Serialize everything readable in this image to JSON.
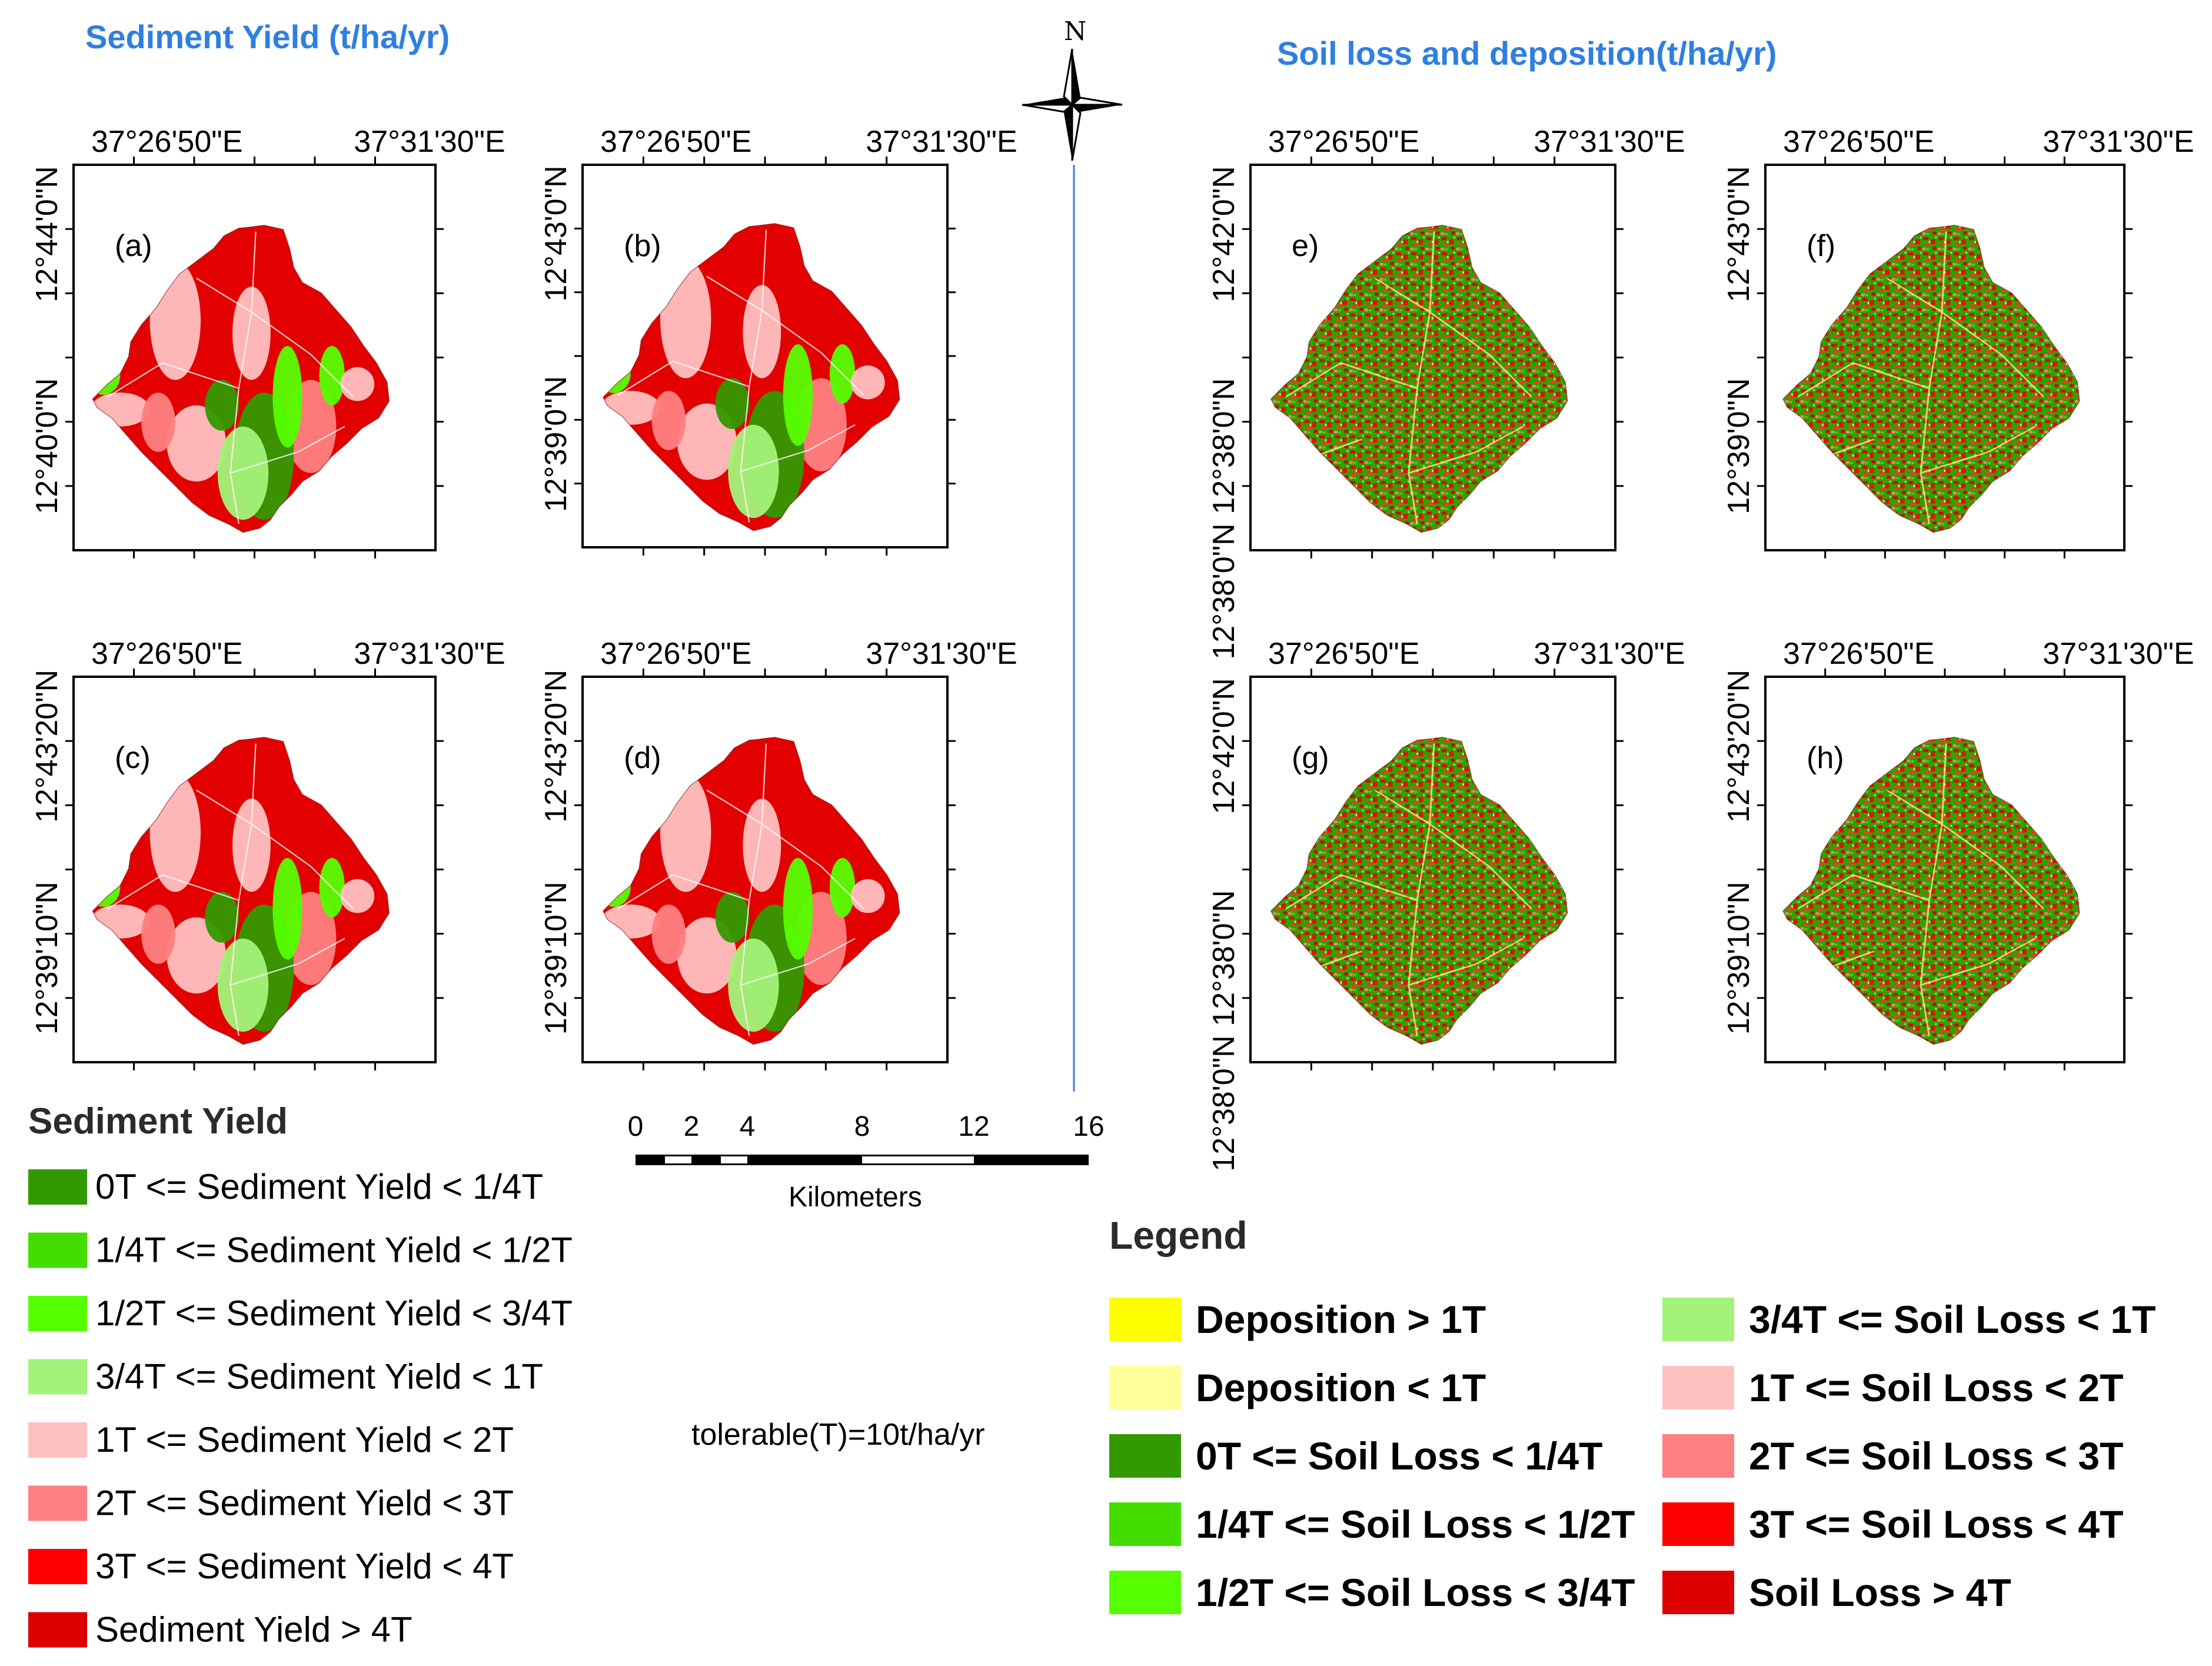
{
  "titles": {
    "sediment": "Sediment Yield (t/ha/yr)",
    "soil": "Soil loss and deposition(t/ha/yr)"
  },
  "north_label": "N",
  "colors": {
    "sy": [
      "#339900",
      "#44dd00",
      "#55ff00",
      "#a3f37a",
      "#ffc0c0",
      "#ff8080",
      "#ff0000",
      "#dd0000"
    ],
    "sl": [
      "#ffff00",
      "#ffff99",
      "#339900",
      "#44dd00",
      "#55ff00",
      "#a3f37a",
      "#ffc0c0",
      "#ff8080",
      "#ff0000",
      "#dd0000"
    ]
  },
  "panels": [
    {
      "id": "a",
      "label": "(a)",
      "lon": [
        "37°26'50\"E",
        "37°31'30\"E"
      ],
      "lat": [
        "12°44'0\"N",
        "12°40'0\"N"
      ],
      "style": "sy"
    },
    {
      "id": "b",
      "label": "(b)",
      "lon": [
        "37°26'50\"E",
        "37°31'30\"E"
      ],
      "lat": [
        "12°43'0\"N",
        "12°39'0\"N"
      ],
      "style": "sy"
    },
    {
      "id": "c",
      "label": "(c)",
      "lon": [
        "37°26'50\"E",
        "37°31'30\"E"
      ],
      "lat": [
        "12°43'20\"N",
        "12°39'10\"N"
      ],
      "style": "sy"
    },
    {
      "id": "d",
      "label": "(d)",
      "lon": [
        "37°26'50\"E",
        "37°31'30\"E"
      ],
      "lat": [
        "12°43'20\"N",
        "12°39'10\"N"
      ],
      "style": "sy"
    },
    {
      "id": "e",
      "label": "e)",
      "lon": [
        "37°26'50\"E",
        "37°31'30\"E"
      ],
      "lat": [
        "12°42'0\"N",
        "12°38'0\"N"
      ],
      "style": "sl"
    },
    {
      "id": "f",
      "label": "(f)",
      "lon": [
        "37°26'50\"E",
        "37°31'30\"E"
      ],
      "lat": [
        "12°43'0\"N",
        "12°39'0\"N"
      ],
      "style": "sl"
    },
    {
      "id": "g",
      "label": "(g)",
      "lon": [
        "37°26'50\"E",
        "37°31'30\"E"
      ],
      "lat": [
        "12°42'0\"N",
        "12°38'0\"N"
      ],
      "style": "sl"
    },
    {
      "id": "h",
      "label": "(h)",
      "lon": [
        "37°26'50\"E",
        "37°31'30\"E"
      ],
      "lat": [
        "12°43'20\"N",
        "12°39'10\"N"
      ],
      "style": "sl"
    }
  ],
  "panel_lat_ticks_extra": {
    "e": "12°38'0\"N",
    "g": "12°38'0\"N"
  },
  "scalebar": {
    "ticks": [
      "0",
      "2",
      "4",
      "8",
      "12",
      "16"
    ],
    "unit": "Kilometers"
  },
  "tolerable_note": "tolerable(T)=10t/ha/yr",
  "sediment_legend": {
    "title": "Sediment Yield",
    "items": [
      "0T <= Sediment Yield < 1/4T",
      "1/4T <= Sediment Yield < 1/2T",
      "1/2T <= Sediment Yield < 3/4T",
      "3/4T <= Sediment Yield < 1T",
      "1T <= Sediment Yield < 2T",
      "2T <= Sediment Yield < 3T",
      "3T <= Sediment Yield < 4T",
      "Sediment Yield > 4T"
    ]
  },
  "soil_legend": {
    "title": "Legend",
    "items": [
      "Deposition > 1T",
      "Deposition < 1T",
      "0T <= Soil Loss < 1/4T",
      "1/4T <= Soil Loss < 1/2T",
      "1/2T <= Soil Loss < 3/4T",
      "3/4T <= Soil Loss < 1T",
      "1T <= Soil Loss < 2T",
      "2T <= Soil Loss < 3T",
      "3T <= Soil Loss < 4T",
      "Soil Loss > 4T"
    ]
  }
}
